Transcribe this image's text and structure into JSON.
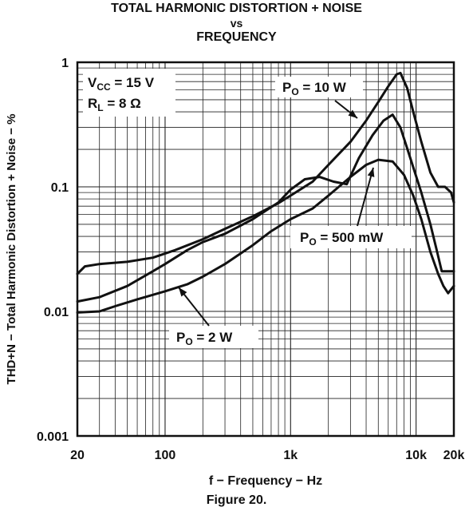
{
  "title_lines": [
    "TOTAL HARMONIC DISTORTION + NOISE",
    "vs",
    "FREQUENCY"
  ],
  "caption": "Figure 20.",
  "conditions": {
    "vcc": {
      "main": "V",
      "sub": "CC",
      "rest": " = 15 V"
    },
    "rl": {
      "main": "R",
      "sub": "L",
      "rest": " = 8 Ω"
    }
  },
  "chart_data": {
    "type": "line",
    "title": "TOTAL HARMONIC DISTORTION + NOISE vs FREQUENCY",
    "xlabel": "f − Frequency − Hz",
    "ylabel": "THD+N − Total Harmonic Distortion + Noise − %",
    "xscale": "log",
    "yscale": "log",
    "xlim": [
      20,
      20000
    ],
    "ylim": [
      0.001,
      1
    ],
    "grid": true,
    "x_ticks": [
      {
        "value": 20,
        "label": "20"
      },
      {
        "value": 100,
        "label": "100"
      },
      {
        "value": 1000,
        "label": "1k"
      },
      {
        "value": 10000,
        "label": "10k"
      },
      {
        "value": 20000,
        "label": "20k"
      }
    ],
    "y_ticks": [
      {
        "value": 1,
        "label": "1"
      },
      {
        "value": 0.1,
        "label": "0.1"
      },
      {
        "value": 0.01,
        "label": "0.01"
      },
      {
        "value": 0.001,
        "label": "0.001"
      }
    ],
    "series": [
      {
        "name_main": "P",
        "name_sub": "O",
        "name_rest": " = 10 W",
        "points": [
          [
            20,
            0.02
          ],
          [
            23,
            0.023
          ],
          [
            30,
            0.024
          ],
          [
            50,
            0.025
          ],
          [
            80,
            0.027
          ],
          [
            120,
            0.031
          ],
          [
            200,
            0.038
          ],
          [
            300,
            0.046
          ],
          [
            500,
            0.058
          ],
          [
            800,
            0.074
          ],
          [
            1000,
            0.085
          ],
          [
            1500,
            0.11
          ],
          [
            2000,
            0.15
          ],
          [
            3000,
            0.23
          ],
          [
            4000,
            0.34
          ],
          [
            5000,
            0.48
          ],
          [
            6000,
            0.64
          ],
          [
            7000,
            0.8
          ],
          [
            7500,
            0.82
          ],
          [
            8500,
            0.62
          ],
          [
            9500,
            0.4
          ],
          [
            11000,
            0.23
          ],
          [
            13000,
            0.13
          ],
          [
            15000,
            0.1
          ],
          [
            17000,
            0.1
          ],
          [
            19000,
            0.09
          ],
          [
            20000,
            0.075
          ]
        ]
      },
      {
        "name_main": "P",
        "name_sub": "O",
        "name_rest": " = 2 W",
        "points": [
          [
            20,
            0.0098
          ],
          [
            30,
            0.01
          ],
          [
            40,
            0.011
          ],
          [
            60,
            0.0125
          ],
          [
            100,
            0.0145
          ],
          [
            150,
            0.0165
          ],
          [
            200,
            0.019
          ],
          [
            300,
            0.024
          ],
          [
            500,
            0.034
          ],
          [
            700,
            0.044
          ],
          [
            1000,
            0.055
          ],
          [
            1500,
            0.067
          ],
          [
            2000,
            0.085
          ],
          [
            3000,
            0.12
          ],
          [
            4000,
            0.15
          ],
          [
            5000,
            0.165
          ],
          [
            6500,
            0.16
          ],
          [
            8000,
            0.125
          ],
          [
            9500,
            0.085
          ],
          [
            11000,
            0.055
          ],
          [
            13000,
            0.03
          ],
          [
            15000,
            0.02
          ],
          [
            16500,
            0.016
          ],
          [
            18000,
            0.014
          ],
          [
            20000,
            0.016
          ]
        ]
      },
      {
        "name_main": "P",
        "name_sub": "O",
        "name_rest": " = 500 mW",
        "points": [
          [
            20,
            0.012
          ],
          [
            30,
            0.013
          ],
          [
            50,
            0.016
          ],
          [
            80,
            0.021
          ],
          [
            100,
            0.024
          ],
          [
            150,
            0.031
          ],
          [
            200,
            0.036
          ],
          [
            300,
            0.042
          ],
          [
            500,
            0.055
          ],
          [
            800,
            0.075
          ],
          [
            1000,
            0.095
          ],
          [
            1300,
            0.115
          ],
          [
            1700,
            0.12
          ],
          [
            2200,
            0.11
          ],
          [
            2800,
            0.105
          ],
          [
            3500,
            0.17
          ],
          [
            4500,
            0.26
          ],
          [
            5500,
            0.34
          ],
          [
            6500,
            0.38
          ],
          [
            7500,
            0.3
          ],
          [
            9000,
            0.17
          ],
          [
            11000,
            0.09
          ],
          [
            13000,
            0.05
          ],
          [
            14500,
            0.032
          ],
          [
            16000,
            0.021
          ],
          [
            20000,
            0.021
          ]
        ]
      }
    ]
  }
}
